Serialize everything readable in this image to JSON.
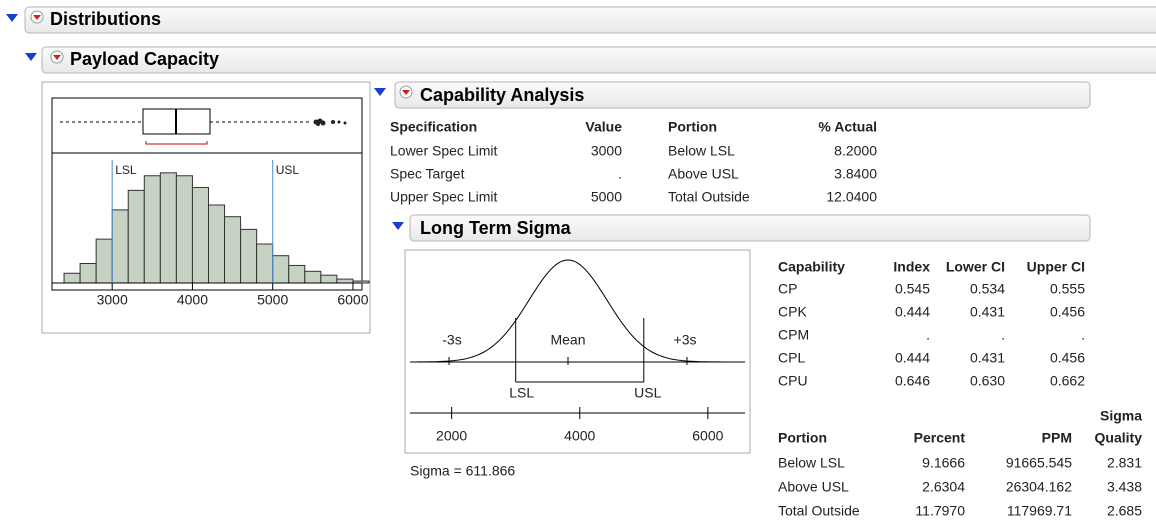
{
  "headers": {
    "distributions": "Distributions",
    "variable": "Payload Capacity",
    "capability": "Capability Analysis",
    "long_term": "Long Term Sigma"
  },
  "histogram": {
    "type": "histogram",
    "color": "#c6d3c2",
    "bins": [
      2400,
      2600,
      2800,
      3000,
      3200,
      3400,
      3600,
      3800,
      4000,
      4200,
      4400,
      4600,
      4800,
      5000,
      5200,
      5400,
      5600,
      5800,
      6000,
      6200
    ],
    "values": [
      10,
      20,
      45,
      75,
      95,
      110,
      113,
      110,
      98,
      80,
      68,
      55,
      40,
      28,
      18,
      12,
      8,
      4,
      2
    ],
    "xlim": [
      2250,
      6200
    ],
    "ylim": [
      0,
      120
    ],
    "xticks": [
      3000,
      4000,
      5000,
      6000
    ],
    "spec_labels": [
      "LSL",
      "USL"
    ]
  },
  "spec_table": {
    "columns": [
      "Specification",
      "Value",
      "Portion",
      "% Actual"
    ],
    "rows": [
      [
        "Lower Spec Limit",
        3000,
        "Below LSL",
        "8.2000"
      ],
      [
        "Spec Target",
        ".",
        "Above USL",
        "3.8400"
      ],
      [
        "Upper Spec Limit",
        5000,
        "Total Outside",
        "12.0400"
      ]
    ]
  },
  "sigma_diagram": {
    "xlim": [
      1350,
      6580
    ],
    "xticks": [
      2000,
      4000,
      6000
    ],
    "minus": "-3s",
    "mean": "Mean",
    "plus": "+3s",
    "sigma_text": "Sigma = 611.866"
  },
  "capability_table": {
    "columns": [
      "Capability",
      "Index",
      "Lower CI",
      "Upper CI"
    ],
    "rows": [
      [
        "CP",
        "0.545",
        "0.534",
        "0.555"
      ],
      [
        "CPK",
        "0.444",
        "0.431",
        "0.456"
      ],
      [
        "CPM",
        ".",
        ".",
        "."
      ],
      [
        "CPL",
        "0.444",
        "0.431",
        "0.456"
      ],
      [
        "CPU",
        "0.646",
        "0.630",
        "0.662"
      ]
    ]
  },
  "portion_table": {
    "columns": [
      "Portion",
      "Percent",
      "PPM",
      [
        "Sigma",
        "Quality"
      ]
    ],
    "rows": [
      [
        "Below LSL",
        "9.1666",
        "91665.545",
        "2.831"
      ],
      [
        "Above USL",
        "2.6304",
        "26304.162",
        "3.438"
      ],
      [
        "Total Outside",
        "11.7970",
        "117969.71",
        "2.685"
      ]
    ]
  }
}
